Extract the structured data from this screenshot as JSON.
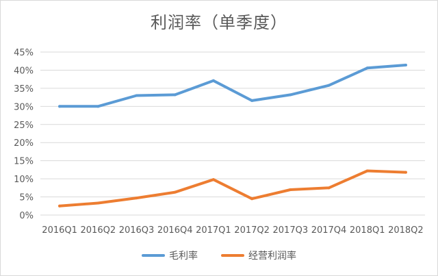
{
  "chart_data": {
    "type": "line",
    "title": "利润率（单季度）",
    "categories": [
      "2016Q1",
      "2016Q2",
      "2016Q3",
      "2016Q4",
      "2017Q1",
      "2017Q2",
      "2017Q3",
      "2017Q4",
      "2018Q1",
      "2018Q2"
    ],
    "series": [
      {
        "name": "毛利率",
        "color": "#5b9bd5",
        "values": [
          30.0,
          30.0,
          33.0,
          33.2,
          37.1,
          31.6,
          33.2,
          35.8,
          40.6,
          41.4
        ]
      },
      {
        "name": "经营利润率",
        "color": "#ed7d31",
        "values": [
          2.5,
          3.3,
          4.7,
          6.3,
          9.8,
          4.5,
          7.0,
          7.5,
          12.2,
          11.8
        ]
      }
    ],
    "ylim": [
      0,
      45
    ],
    "yticks": [
      "0%",
      "5%",
      "10%",
      "15%",
      "20%",
      "25%",
      "30%",
      "35%",
      "40%",
      "45%"
    ],
    "ytick_values": [
      0,
      5,
      10,
      15,
      20,
      25,
      30,
      35,
      40,
      45
    ],
    "grid": true,
    "legend_position": "bottom"
  }
}
